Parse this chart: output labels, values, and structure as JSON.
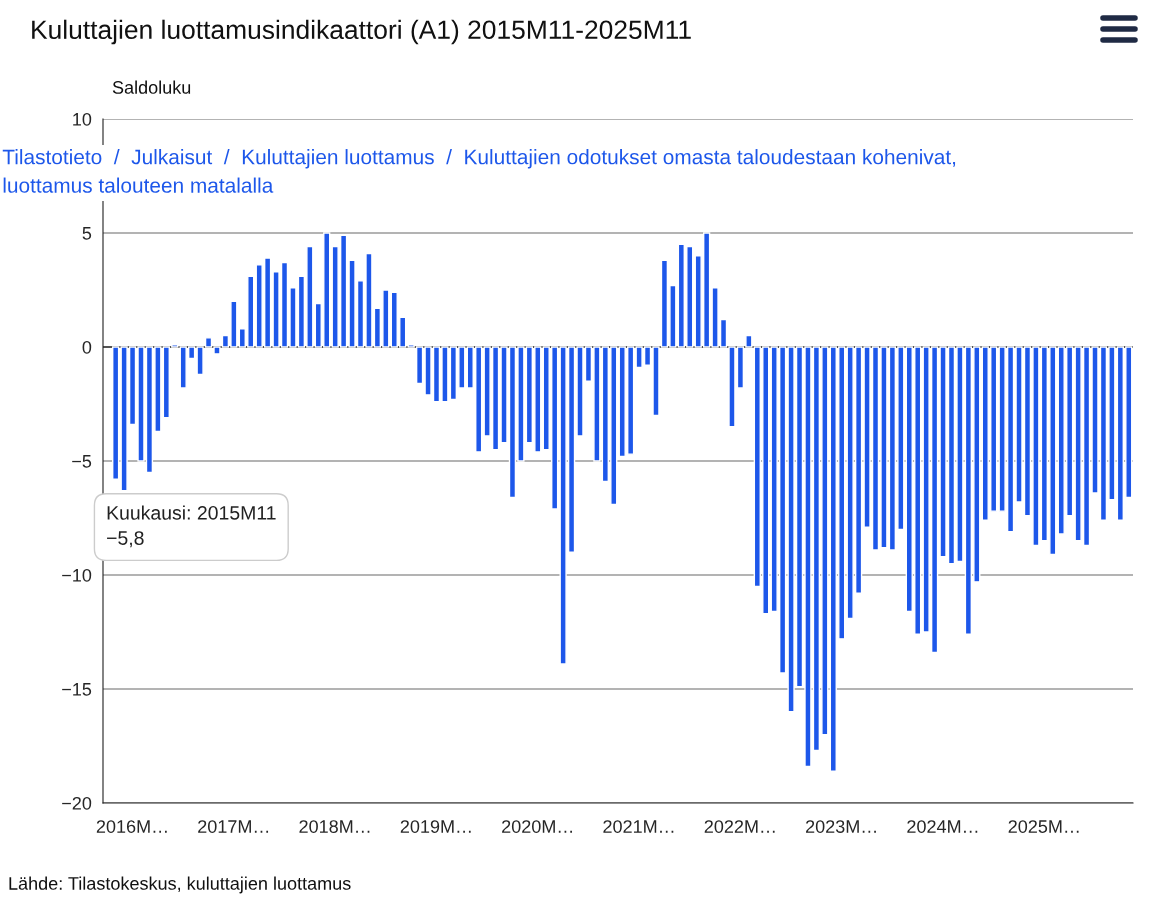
{
  "chart_data": {
    "type": "bar",
    "title": "Kuluttajien luottamusindikaattori (A1) 2015M11-2025M11",
    "ylabel": "Saldoluku",
    "categories": [
      null,
      null,
      "2016M…",
      null,
      null,
      null,
      null,
      null,
      null,
      null,
      null,
      null,
      null,
      null,
      "2017M…",
      null,
      null,
      null,
      null,
      null,
      null,
      null,
      null,
      null,
      null,
      null,
      "2018M…",
      null,
      null,
      null,
      null,
      null,
      null,
      null,
      null,
      null,
      null,
      null,
      "2019M…",
      null,
      null,
      null,
      null,
      null,
      null,
      null,
      null,
      null,
      null,
      null,
      "2020M…",
      null,
      null,
      null,
      null,
      null,
      null,
      null,
      null,
      null,
      null,
      null,
      "2021M…",
      null,
      null,
      null,
      null,
      null,
      null,
      null,
      null,
      null,
      null,
      null,
      "2022M…",
      null,
      null,
      null,
      null,
      null,
      null,
      null,
      null,
      null,
      null,
      null,
      "2023M…",
      null,
      null,
      null,
      null,
      null,
      null,
      null,
      null,
      null,
      null,
      null,
      "2024M…",
      null,
      null,
      null,
      null,
      null,
      null,
      null,
      null,
      null,
      null,
      null,
      "2025M…",
      null,
      null,
      null,
      null,
      null,
      null,
      null,
      null,
      null,
      null
    ],
    "series": [
      {
        "color": "#1d57ea",
        "values": [
          -5.8,
          -6.3,
          -3.4,
          -5.0,
          -5.5,
          -3.7,
          -3.1,
          0.1,
          -1.8,
          -0.5,
          -1.2,
          0.4,
          -0.3,
          0.5,
          2.0,
          0.8,
          3.1,
          3.6,
          3.9,
          3.3,
          3.7,
          2.6,
          3.1,
          4.4,
          1.9,
          5.0,
          4.4,
          4.9,
          3.8,
          2.9,
          4.1,
          1.7,
          2.5,
          2.4,
          1.3,
          0.1,
          -1.6,
          -2.1,
          -2.4,
          -2.4,
          -2.3,
          -1.8,
          -1.8,
          -4.6,
          -3.9,
          -4.5,
          -4.2,
          -6.6,
          -5.0,
          -4.2,
          -4.6,
          -4.5,
          -7.1,
          -13.9,
          -9.0,
          -3.9,
          -1.5,
          -5.0,
          -5.9,
          -6.9,
          -4.8,
          -4.7,
          -0.9,
          -0.8,
          -3.0,
          3.8,
          2.7,
          4.5,
          4.4,
          4.0,
          5.0,
          2.6,
          1.2,
          -3.5,
          -1.8,
          0.5,
          -10.5,
          -11.7,
          -11.6,
          -14.3,
          -16.0,
          -14.9,
          -18.4,
          -17.7,
          -17.0,
          -18.6,
          -12.8,
          -11.9,
          -10.8,
          -7.9,
          -8.9,
          -8.8,
          -8.9,
          -8.0,
          -11.6,
          -12.6,
          -12.5,
          -13.4,
          -9.2,
          -9.5,
          -9.4,
          -12.6,
          -10.3,
          -7.6,
          -7.2,
          -7.2,
          -8.1,
          -6.8,
          -7.4,
          -8.7,
          -8.5,
          -9.1,
          -8.2,
          -7.4,
          -8.5,
          -8.7,
          -6.4,
          -7.6,
          -6.7,
          -7.6,
          -6.6
        ]
      }
    ],
    "ylim": [
      -20,
      10
    ],
    "yticks": [
      {
        "value": -20,
        "label": "−20"
      },
      {
        "value": -15,
        "label": "−15"
      },
      {
        "value": -10,
        "label": "−10"
      },
      {
        "value": -5,
        "label": "−5"
      },
      0,
      5,
      10
    ],
    "grid": "y",
    "annotations": [
      "Kuukausi: 2015M11\n−5,8",
      "Lähde: Tilastokeskus, kuluttajien luottamus",
      "Tilastotieto  /  Julkaisut  /  Kuluttajien luottamus  /  Kuluttajien odotukset omasta taloudestaan kohenivat,\nluottamus talouteen matalalla"
    ]
  }
}
